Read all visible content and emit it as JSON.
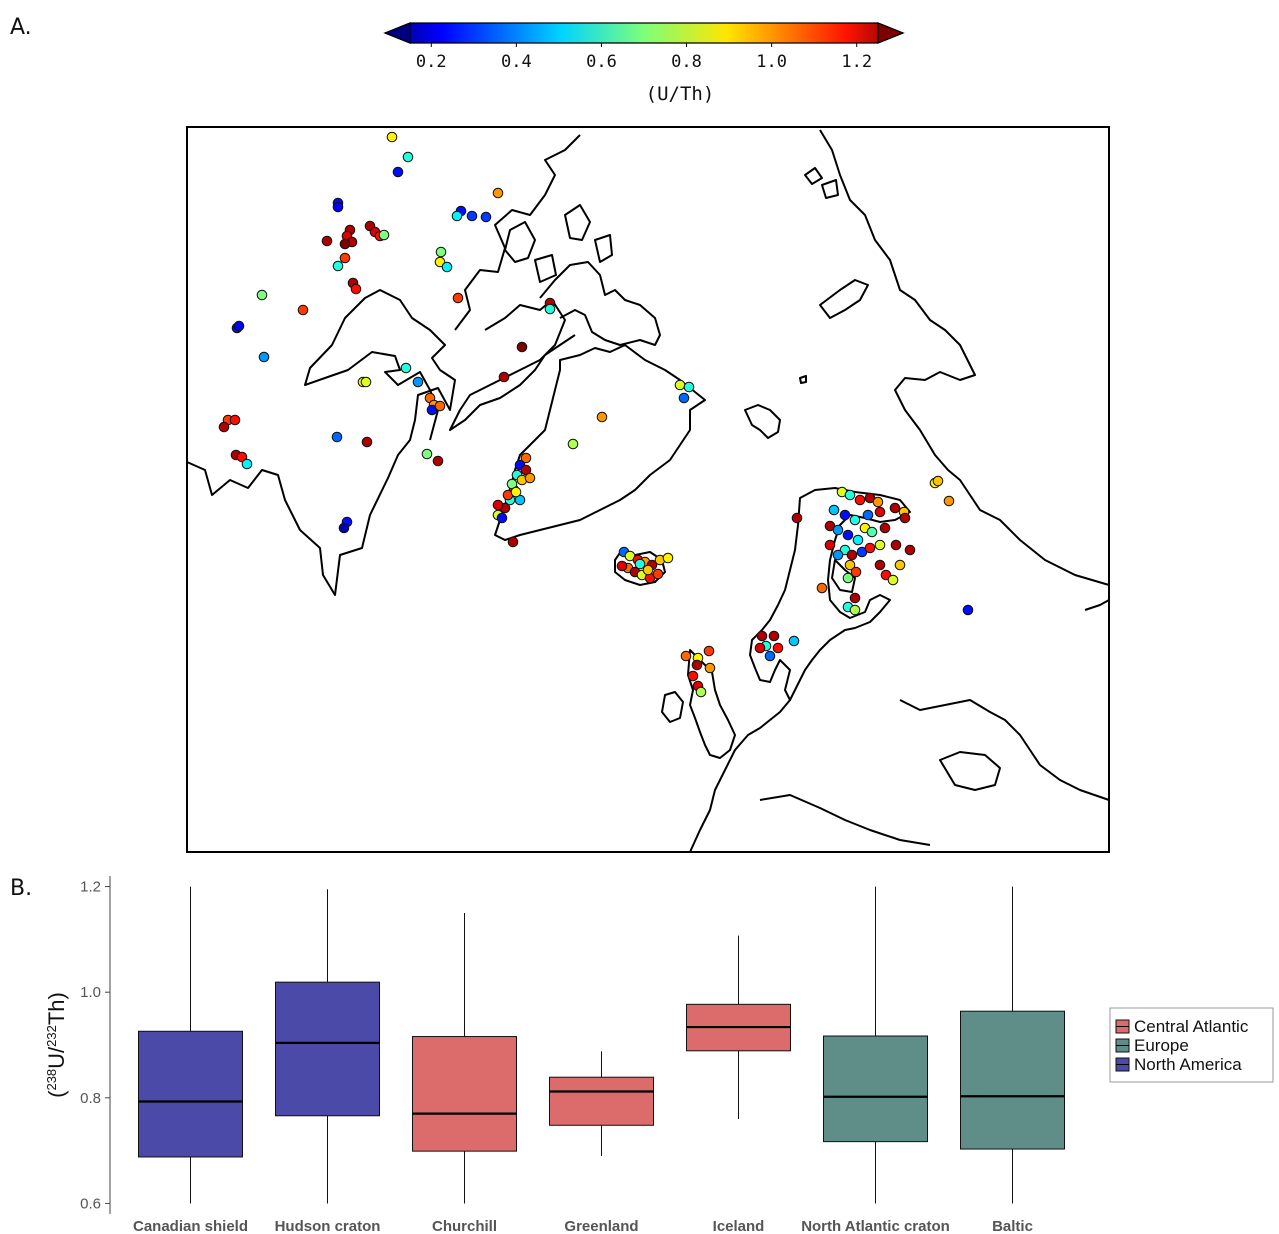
{
  "panels": {
    "a_label": "A.",
    "b_label": "B."
  },
  "colorbar": {
    "title": "(U/Th)",
    "ticks": [
      "0.2",
      "0.4",
      "0.6",
      "0.8",
      "1.0",
      "1.2"
    ],
    "range": [
      0.15,
      1.25
    ],
    "colormap": "jet",
    "extend": "both"
  },
  "map": {
    "projection": "polar-stereographic (north)",
    "regions": [
      "North America",
      "Arctic Canada",
      "Greenland",
      "Iceland",
      "British Isles",
      "Fennoscandia"
    ]
  },
  "chart_data": [
    {
      "type": "scatter",
      "subtype": "map points colored by U/Th",
      "point_groups": [
        {
          "region": "Northwest Canada",
          "values_sample": [
            0.3,
            1.2,
            1.1,
            0.9,
            0.7,
            1.15
          ]
        },
        {
          "region": "Arctic islands",
          "values_sample": [
            0.3,
            0.8,
            1.2,
            0.6,
            0.95
          ]
        },
        {
          "region": "West Greenland",
          "values_sample": [
            1.2,
            0.6,
            1.0,
            0.8,
            0.3,
            1.1
          ]
        },
        {
          "region": "East Greenland",
          "values_sample": [
            0.75,
            0.4,
            0.95
          ]
        },
        {
          "region": "Iceland",
          "values_sample": [
            1.1,
            0.9,
            1.0,
            1.2,
            0.8
          ]
        },
        {
          "region": "Scotland",
          "values_sample": [
            1.0,
            1.2,
            0.75
          ]
        },
        {
          "region": "Norway",
          "values_sample": [
            1.2,
            0.5
          ]
        },
        {
          "region": "Finland / Kola",
          "values_sample": [
            0.3,
            0.5,
            1.2,
            0.8,
            1.1,
            0.6
          ]
        }
      ]
    },
    {
      "type": "box",
      "ylabel_parts": {
        "open": "(",
        "sup1": "238",
        "u": "U/",
        "sup2": "232",
        "th": "Th)"
      },
      "ylim": [
        0.58,
        1.22
      ],
      "yticks": [
        "0.6",
        "0.8",
        "1.0",
        "1.2"
      ],
      "categories": [
        "Canadian shield",
        "Hudson craton",
        "Churchill",
        "Greenland",
        "Iceland",
        "North Atlantic craton",
        "Baltic"
      ],
      "groups": [
        "North America",
        "North America",
        "Central Atlantic",
        "Central Atlantic",
        "Central Atlantic",
        "Europe",
        "Europe"
      ],
      "boxes": [
        {
          "min": 0.6,
          "q1": 0.688,
          "median": 0.793,
          "q3": 0.926,
          "max": 1.2
        },
        {
          "min": 0.6,
          "q1": 0.766,
          "median": 0.904,
          "q3": 1.019,
          "max": 1.195
        },
        {
          "min": 0.6,
          "q1": 0.699,
          "median": 0.77,
          "q3": 0.916,
          "max": 1.15
        },
        {
          "min": 0.69,
          "q1": 0.748,
          "median": 0.812,
          "q3": 0.839,
          "max": 0.888
        },
        {
          "min": 0.76,
          "q1": 0.889,
          "median": 0.934,
          "q3": 0.977,
          "max": 1.107
        },
        {
          "min": 0.6,
          "q1": 0.717,
          "median": 0.802,
          "q3": 0.917,
          "max": 1.2
        },
        {
          "min": 0.6,
          "q1": 0.703,
          "median": 0.803,
          "q3": 0.964,
          "max": 1.2
        }
      ],
      "legend": [
        {
          "name": "Central Atlantic",
          "color": "#dc6b6b"
        },
        {
          "name": "Europe",
          "color": "#5f8e88"
        },
        {
          "name": "North America",
          "color": "#4c4aa9"
        }
      ],
      "legend_position": "right",
      "grid": false
    }
  ]
}
